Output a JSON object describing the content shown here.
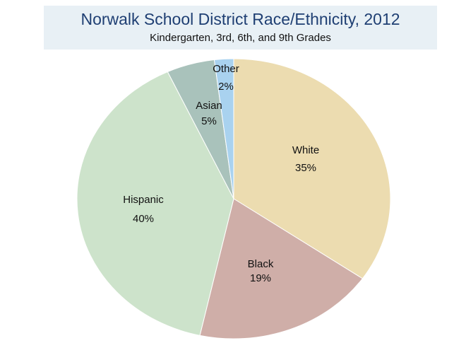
{
  "chart_data": {
    "type": "pie",
    "title": "Norwalk School District Race/Ethnicity, 2012",
    "subtitle": "Kindergarten, 3rd, 6th, and 9th Grades",
    "slices": [
      {
        "name": "White",
        "value": 35,
        "label": "35%",
        "color": "#ecdcb0"
      },
      {
        "name": "Black",
        "value": 19,
        "label": "19%",
        "color": "#cfaea8"
      },
      {
        "name": "Hispanic",
        "value": 40,
        "label": "40%",
        "color": "#cde3cb"
      },
      {
        "name": "Asian",
        "value": 5,
        "label": "5%",
        "color": "#a9c2bb"
      },
      {
        "name": "Other",
        "value": 2,
        "label": "2%",
        "color": "#a9d2ef"
      }
    ]
  }
}
